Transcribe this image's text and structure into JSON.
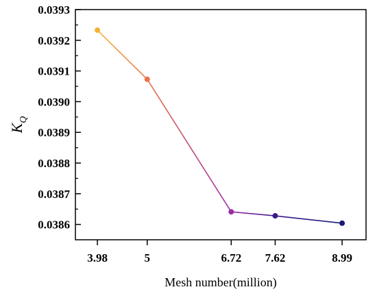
{
  "chart_data": {
    "type": "line",
    "title": "",
    "xlabel": "Mesh number(million)",
    "ylabel": {
      "main": "K",
      "sub": "Q"
    },
    "x": [
      3.98,
      5,
      6.72,
      7.62,
      8.99
    ],
    "x_tick_labels": [
      "3.98",
      "5",
      "6.72",
      "7.62",
      "8.99"
    ],
    "y_ticks": [
      "0.0386",
      "0.0387",
      "0.0388",
      "0.0389",
      "0.0390",
      "0.0391",
      "0.0392",
      "0.0393"
    ],
    "series": [
      {
        "values": [
          0.039233,
          0.039073,
          0.038641,
          0.038628,
          0.038604
        ]
      }
    ],
    "point_colors": [
      "#f5b335",
      "#e8734a",
      "#9c2aa6",
      "#3a1a8e",
      "#1a1a7a"
    ],
    "xlim": [
      3.53,
      9.48
    ],
    "ylim": [
      0.03855,
      0.0393
    ],
    "grid": false,
    "legend": "none"
  }
}
